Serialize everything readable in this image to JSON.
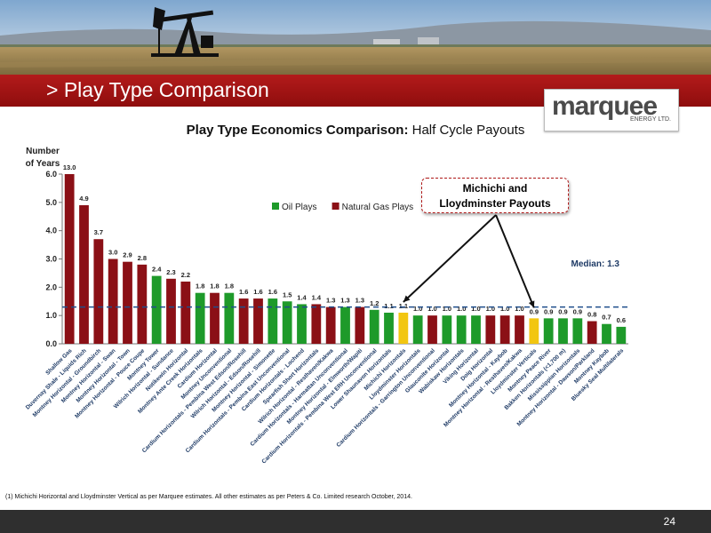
{
  "slide": {
    "title": "> Play Type Comparison",
    "logo_text": "marquee",
    "logo_sub": "ENERGY LTD.",
    "footnote": "(1)  Michichi Horizontal and Lloydminster Vertical as per Marquee estimates. All other estimates as per Peters & Co. Limited research October, 2014.",
    "page_number": "24"
  },
  "callout": {
    "line1": "Michichi and",
    "line2": "Lloydminster Payouts"
  },
  "colors": {
    "oil": "#1e9a2a",
    "gas": "#8b1016",
    "highlight": "#f2c611",
    "median_line": "#1f4e8c",
    "title_bar": "#a51515"
  },
  "chart_data": {
    "type": "bar",
    "title_bold": "Play Type Economics Comparison:",
    "title_rest": "Half Cycle Payouts",
    "ylabel": "Number of Years",
    "xlabel": "",
    "ylim": [
      0,
      6
    ],
    "yticks": [
      "0.0",
      "1.0",
      "2.0",
      "3.0",
      "4.0",
      "5.0",
      "6.0"
    ],
    "median": {
      "label": "Median: 1.3",
      "value": 1.3
    },
    "legend": [
      {
        "name": "Oil Plays",
        "type": "oil"
      },
      {
        "name": "Natural Gas Plays",
        "type": "gas"
      }
    ],
    "categories": [
      "Shallow Gas",
      "Duvernay Shale - Liquids Rich",
      "Montney Horizontal - Groundbirch",
      "Montney Horizontal - Swan",
      "Montney Horizontal - Town",
      "Montney Horizontal - Pouce Coupe",
      "Montney Tower",
      "Wilrich Horizontal - Sundance",
      "Notikewin Horizontal",
      "Montney Ante Creek Horizontals",
      "Cardium Horizontal",
      "Montney Unconventional",
      "Cardium Horizontals - Pembina West Edson/Rosehill",
      "Wilrich Horizontal - Edson/Rosehill",
      "Montney Horizontal - Simonette",
      "Cardium Horizontals - Pembina East Unconventional",
      "Cardium Horizontals - Lochend",
      "Spearfish Short Horizontals",
      "Wilrich Horizontal - Resthaven/Kakwa",
      "Cardium Horizontals - Harmattan Unconventional",
      "Montney Horizontal - Elmworth/Wapiti",
      "Cardium Horizontals - Pembina West ERH Unconventional",
      "Lower Shaunavon Horizontals",
      "Michichi Horizontals",
      "Lloydminster Horizontals",
      "Cardium Horizontals - Garrington Unconventional",
      "Glauconite Horizontal",
      "Wabiskaw Horizontals",
      "Viking Horizontal",
      "Doig Horizontal",
      "Montney Horizontal - Kaybob",
      "Montney Horizontal - Resthaven/Kakwa",
      "Lloydminster Verticals",
      "Montney Peace River",
      "Bakken Horizontals (<1,700 m)",
      "Mississippian Horizontals",
      "Montney Horizontal - Dawson/Parkland",
      "Montney Kaybob",
      "Bluesky Seal Multilaterals"
    ],
    "values": [
      13.0,
      4.9,
      3.7,
      3.0,
      2.9,
      2.8,
      2.4,
      2.3,
      2.2,
      1.8,
      1.8,
      1.8,
      1.6,
      1.6,
      1.6,
      1.5,
      1.4,
      1.4,
      1.3,
      1.3,
      1.3,
      1.2,
      1.1,
      1.1,
      1.0,
      1.0,
      1.0,
      1.0,
      1.0,
      1.0,
      1.0,
      1.0,
      0.9,
      0.9,
      0.9,
      0.9,
      0.8,
      0.7,
      0.6
    ],
    "value_labels": [
      "13.0",
      "4.9",
      "3.7",
      "3.0",
      "2.9",
      "2.8",
      "2.4",
      "2.3",
      "2.2",
      "1.8",
      "1.8",
      "1.8",
      "1.6",
      "1.6",
      "1.6",
      "1.5",
      "1.4",
      "1.4",
      "1.3",
      "1.3",
      "1.3",
      "1.2",
      "1.1",
      "1.1",
      "1.0",
      "1.0",
      "1.0",
      "1.0",
      "1.0",
      "1.0",
      "1.0",
      "1.0",
      "0.9",
      "0.9",
      "0.9",
      "0.9",
      "0.8",
      "0.7",
      "0.6"
    ],
    "types": [
      "gas",
      "gas",
      "gas",
      "gas",
      "gas",
      "gas",
      "oil",
      "gas",
      "gas",
      "oil",
      "gas",
      "oil",
      "gas",
      "gas",
      "oil",
      "oil",
      "oil",
      "gas",
      "gas",
      "oil",
      "gas",
      "oil",
      "oil",
      "highlight",
      "oil",
      "gas",
      "oil",
      "oil",
      "oil",
      "gas",
      "gas",
      "gas",
      "highlight",
      "oil",
      "oil",
      "oil",
      "gas",
      "oil",
      "oil"
    ]
  }
}
